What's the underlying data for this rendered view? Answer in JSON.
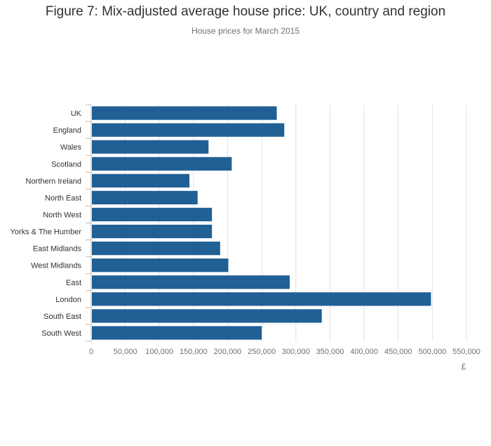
{
  "chart_data": {
    "type": "bar",
    "orientation": "horizontal",
    "title": "Figure 7: Mix-adjusted average house price: UK, country and region",
    "subtitle": "House prices for March 2015",
    "xlabel": "£",
    "ylabel": "",
    "categories": [
      "UK",
      "England",
      "Wales",
      "Scotland",
      "Northern Ireland",
      "North East",
      "North West",
      "Yorks & The Humber",
      "East Midlands",
      "West Midlands",
      "East",
      "London",
      "South East",
      "South West"
    ],
    "values": [
      272000,
      283000,
      172000,
      206000,
      144000,
      156000,
      177000,
      177000,
      189000,
      201000,
      291000,
      498000,
      338000,
      250000
    ],
    "xlim": [
      0,
      550000
    ],
    "xticks": [
      "0",
      "50,000",
      "100,000",
      "150,000",
      "200,000",
      "250,000",
      "300,000",
      "350,000",
      "400,000",
      "450,000",
      "500,000",
      "550,000"
    ],
    "bar_color": "#206095",
    "grid": true
  }
}
